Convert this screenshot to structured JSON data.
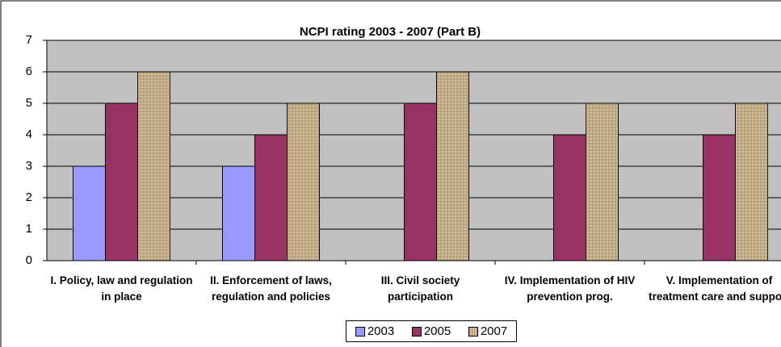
{
  "chart_data": {
    "type": "bar",
    "title": "NCPI rating 2003 - 2007 (Part B)",
    "categories": [
      "I. Policy, law and regulation in place",
      "II. Enforcement of laws, regulation and policies",
      "III. Civil society participation",
      "IV. Implementation of HIV prevention prog.",
      "V. Implementation of treatment care and support"
    ],
    "series": [
      {
        "name": "2003",
        "color": "#9999ff",
        "values": [
          3,
          3,
          null,
          null,
          null
        ]
      },
      {
        "name": "2005",
        "color": "#993366",
        "values": [
          5,
          4,
          5,
          4,
          4
        ]
      },
      {
        "name": "2007",
        "color": "#d4c09a",
        "values": [
          6,
          5,
          6,
          5,
          5
        ]
      }
    ],
    "ylim": [
      0,
      7
    ],
    "yticks": [
      0,
      1,
      2,
      3,
      4,
      5,
      6,
      7
    ],
    "grid": true,
    "legend": "bottom"
  }
}
